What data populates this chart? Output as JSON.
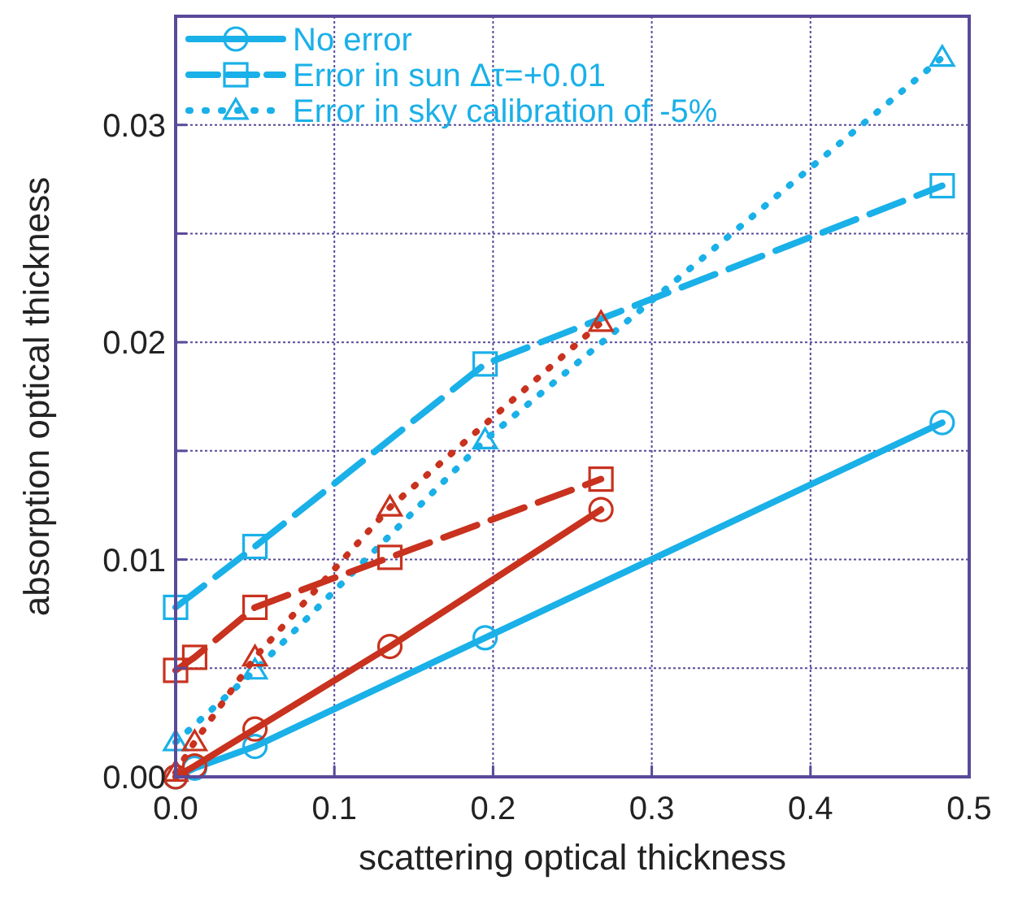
{
  "chart_data": {
    "type": "line",
    "xlabel": "scattering optical thickness",
    "ylabel": "absorption optical thickness",
    "xlim": [
      0,
      0.5
    ],
    "ylim": [
      0,
      0.035
    ],
    "xticks": [
      {
        "value": 0,
        "label": "0.0"
      },
      0.1,
      0.2,
      0.3,
      0.4,
      0.5
    ],
    "yticks": [
      {
        "value": 0,
        "label": "0.00"
      },
      {
        "value": 0.005,
        "label": null
      },
      0.01,
      {
        "value": 0.015,
        "label": null
      },
      0.02,
      {
        "value": 0.025,
        "label": null
      },
      0.03
    ],
    "grid": true,
    "legend": "top left",
    "series": [
      {
        "name": "No error",
        "color": "#1ab0e8",
        "line_style": "solid",
        "marker": "circle",
        "x": [
          0,
          0.012,
          0.05,
          0.195,
          0.483
        ],
        "values": [
          0,
          0.0004,
          0.0014,
          0.0064,
          0.0163
        ]
      },
      {
        "name": "Error in sun Δτ=+0.01",
        "color": "#1ab0e8",
        "line_style": "dashed",
        "marker": "square",
        "x": [
          0,
          0.05,
          0.195,
          0.483
        ],
        "values": [
          0.0078,
          0.0106,
          0.019,
          0.0272
        ]
      },
      {
        "name": "Error in sky calibration of -5%",
        "color": "#1ab0e8",
        "line_style": "dotted",
        "marker": "triangle",
        "x": [
          0,
          0.05,
          0.195,
          0.483
        ],
        "values": [
          0.0016,
          0.0049,
          0.0155,
          0.0331
        ]
      },
      {
        "color": "#c8321e",
        "line_style": "solid",
        "marker": "circle",
        "x": [
          0,
          0.012,
          0.05,
          0.135,
          0.268
        ],
        "values": [
          0,
          0.0005,
          0.0022,
          0.006,
          0.0123
        ]
      },
      {
        "color": "#c8321e",
        "line_style": "dashed",
        "marker": "square",
        "x": [
          0,
          0.012,
          0.05,
          0.135,
          0.268
        ],
        "values": [
          0.0049,
          0.0055,
          0.0078,
          0.0101,
          0.0137
        ]
      },
      {
        "color": "#c8321e",
        "line_style": "dotted",
        "marker": "triangle",
        "x": [
          0,
          0.012,
          0.05,
          0.135,
          0.268
        ],
        "values": [
          0.0002,
          0.0016,
          0.0055,
          0.0124,
          0.0209
        ]
      }
    ]
  }
}
